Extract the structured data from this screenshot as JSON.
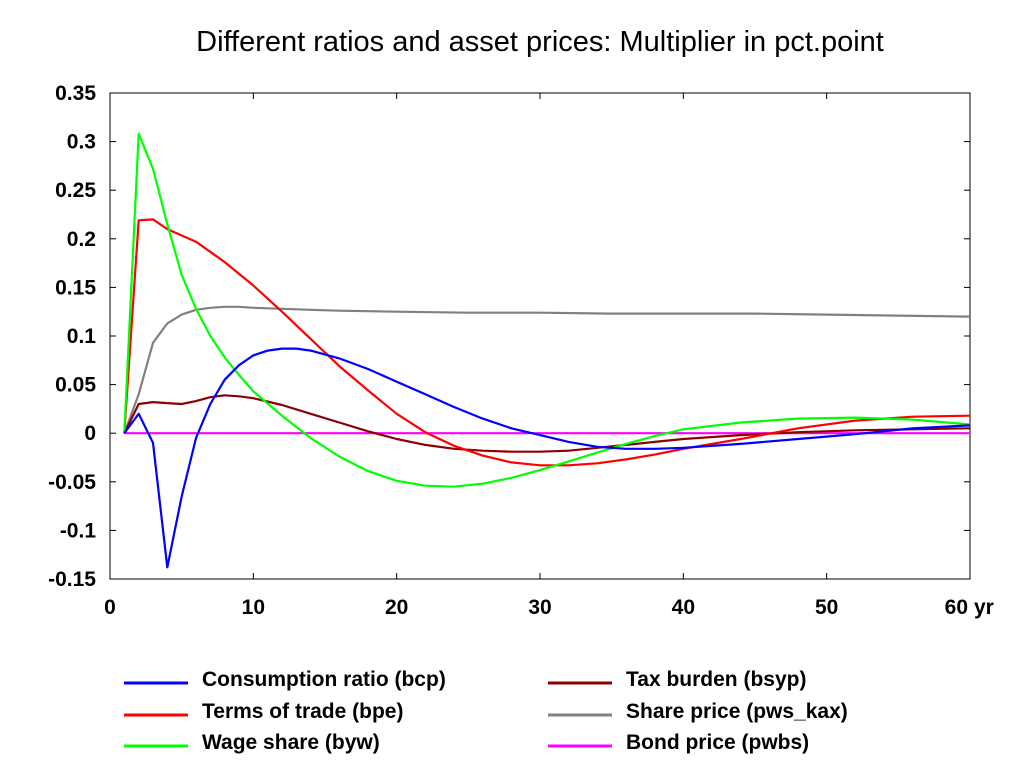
{
  "chart_data": {
    "type": "line",
    "title": "Different ratios and asset prices: Multiplier in pct.point",
    "xlabel": "",
    "ylabel": "",
    "x_unit_label": "yr",
    "xlim": [
      0,
      60
    ],
    "ylim": [
      -0.15,
      0.35
    ],
    "x_ticks": [
      0,
      10,
      20,
      30,
      40,
      50,
      60
    ],
    "x_tick_labels": [
      "0",
      "10",
      "20",
      "30",
      "40",
      "50",
      "60"
    ],
    "y_ticks": [
      0.35,
      0.3,
      0.25,
      0.2,
      0.15,
      0.1,
      0.05,
      0,
      -0.05,
      -0.1,
      -0.15
    ],
    "y_tick_labels": [
      "0.35",
      "0.3",
      "0.25",
      "0.2",
      "0.15",
      "0.1",
      "0.05",
      "0",
      "-0.05",
      "-0.1",
      "-0.15"
    ],
    "grid": false,
    "legend_position": "bottom",
    "series": [
      {
        "name": "Consumption ratio (bcp)",
        "color": "#0000ff",
        "x": [
          1,
          2,
          3,
          4,
          5,
          6,
          7,
          8,
          9,
          10,
          11,
          12,
          13,
          14,
          16,
          18,
          20,
          22,
          24,
          26,
          28,
          30,
          32,
          34,
          36,
          38,
          40,
          44,
          48,
          52,
          56,
          60
        ],
        "y": [
          0,
          0.02,
          -0.01,
          -0.138,
          -0.065,
          -0.005,
          0.03,
          0.055,
          0.07,
          0.08,
          0.085,
          0.087,
          0.087,
          0.085,
          0.077,
          0.066,
          0.053,
          0.04,
          0.027,
          0.015,
          0.005,
          -0.002,
          -0.009,
          -0.014,
          -0.016,
          -0.016,
          -0.015,
          -0.011,
          -0.006,
          -0.001,
          0.005,
          0.008
        ]
      },
      {
        "name": "Terms of trade (bpe)",
        "color": "#ff0000",
        "x": [
          1,
          2,
          3,
          4,
          6,
          8,
          10,
          12,
          14,
          16,
          18,
          20,
          22,
          24,
          26,
          28,
          30,
          32,
          34,
          36,
          38,
          40,
          44,
          48,
          52,
          56,
          60
        ],
        "y": [
          0,
          0.219,
          0.22,
          0.21,
          0.197,
          0.176,
          0.152,
          0.125,
          0.097,
          0.069,
          0.044,
          0.02,
          0.001,
          -0.013,
          -0.023,
          -0.03,
          -0.033,
          -0.033,
          -0.031,
          -0.027,
          -0.022,
          -0.016,
          -0.006,
          0.005,
          0.013,
          0.017,
          0.018
        ]
      },
      {
        "name": "Wage share (byw)",
        "color": "#00ff00",
        "x": [
          1,
          2,
          3,
          4,
          5,
          6,
          7,
          8,
          9,
          10,
          12,
          14,
          16,
          18,
          20,
          22,
          24,
          26,
          28,
          30,
          32,
          34,
          36,
          38,
          40,
          44,
          48,
          52,
          56,
          60
        ],
        "y": [
          0,
          0.308,
          0.272,
          0.215,
          0.163,
          0.128,
          0.1,
          0.078,
          0.06,
          0.043,
          0.018,
          -0.005,
          -0.024,
          -0.039,
          -0.049,
          -0.054,
          -0.055,
          -0.052,
          -0.046,
          -0.038,
          -0.029,
          -0.02,
          -0.011,
          -0.003,
          0.004,
          0.011,
          0.015,
          0.016,
          0.014,
          0.009
        ]
      },
      {
        "name": "Tax burden (bsyp)",
        "color": "#8b0000",
        "x": [
          1,
          2,
          3,
          4,
          5,
          6,
          7,
          8,
          9,
          10,
          12,
          14,
          16,
          18,
          20,
          22,
          24,
          26,
          28,
          30,
          32,
          34,
          36,
          38,
          40,
          44,
          48,
          52,
          56,
          60
        ],
        "y": [
          0,
          0.03,
          0.032,
          0.031,
          0.03,
          0.033,
          0.037,
          0.039,
          0.038,
          0.036,
          0.029,
          0.02,
          0.011,
          0.002,
          -0.006,
          -0.012,
          -0.016,
          -0.018,
          -0.019,
          -0.019,
          -0.018,
          -0.015,
          -0.012,
          -0.009,
          -0.006,
          -0.002,
          0.001,
          0.003,
          0.004,
          0.005
        ]
      },
      {
        "name": "Share price (pws_kax)",
        "color": "#808080",
        "x": [
          1,
          2,
          3,
          4,
          5,
          6,
          7,
          8,
          9,
          10,
          12,
          14,
          16,
          20,
          25,
          30,
          35,
          40,
          45,
          50,
          55,
          60
        ],
        "y": [
          0,
          0.04,
          0.093,
          0.113,
          0.122,
          0.127,
          0.129,
          0.13,
          0.13,
          0.129,
          0.128,
          0.127,
          0.126,
          0.125,
          0.124,
          0.124,
          0.123,
          0.123,
          0.123,
          0.122,
          0.121,
          0.12
        ]
      },
      {
        "name": "Bond price (pwbs)",
        "color": "#ff00ff",
        "x": [
          1,
          60
        ],
        "y": [
          0,
          0
        ]
      }
    ]
  }
}
